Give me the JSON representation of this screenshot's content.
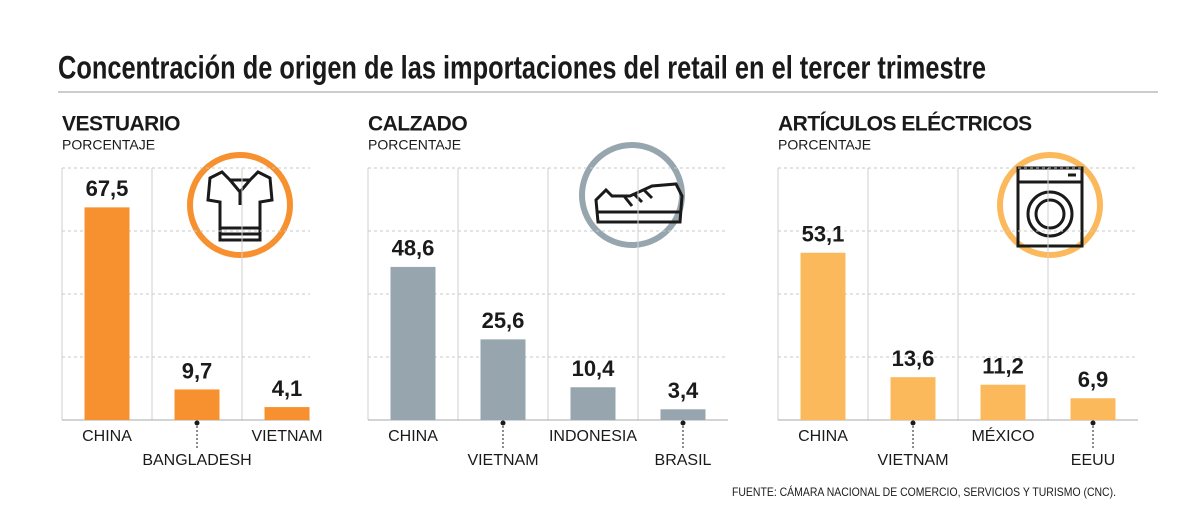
{
  "title": "Concentración de origen de las importaciones del retail en el tercer trimestre",
  "source": "FUENTE: CÁMARA NACIONAL DE COMERCIO, SERVICIOS Y TURISMO (CNC).",
  "chart_data": [
    {
      "type": "bar",
      "title": "VESTUARIO",
      "subtitle": "PORCENTAJE",
      "categories": [
        "CHINA",
        "BANGLADESH",
        "VIETNAM"
      ],
      "values": [
        67.5,
        9.7,
        4.1
      ],
      "value_labels": [
        "67,5",
        "9,7",
        "4,1"
      ],
      "color": "#f7902f",
      "ylim": [
        0,
        80
      ],
      "yticks": [
        0,
        20,
        40,
        60,
        80
      ],
      "grid": true
    },
    {
      "type": "bar",
      "title": "CALZADO",
      "subtitle": "PORCENTAJE",
      "categories": [
        "CHINA",
        "VIETNAM",
        "INDONESIA",
        "BRASIL"
      ],
      "values": [
        48.6,
        25.6,
        10.4,
        3.4
      ],
      "value_labels": [
        "48,6",
        "25,6",
        "10,4",
        "3,4"
      ],
      "color": "#97a6ae",
      "ylim": [
        0,
        80
      ],
      "yticks": [
        0,
        20,
        40,
        60,
        80
      ],
      "grid": true
    },
    {
      "type": "bar",
      "title": "ARTÍCULOS ELÉCTRICOS",
      "subtitle": "PORCENTAJE",
      "categories": [
        "CHINA",
        "VIETNAM",
        "MÉXICO",
        "EEUU"
      ],
      "values": [
        53.1,
        13.6,
        11.2,
        6.9
      ],
      "value_labels": [
        "53,1",
        "13,6",
        "11,2",
        "6,9"
      ],
      "color": "#fbb95c",
      "ylim": [
        0,
        80
      ],
      "yticks": [
        0,
        20,
        40,
        60,
        80
      ],
      "grid": true
    }
  ]
}
